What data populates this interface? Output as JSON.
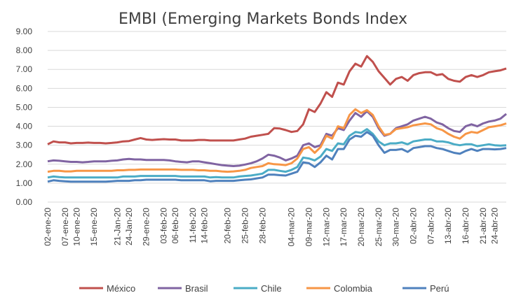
{
  "chart_data": {
    "type": "line",
    "title": "EMBI (Emerging Markets Bonds Index",
    "xlabel": "",
    "ylabel": "",
    "ylim": [
      0,
      9
    ],
    "yticks": [
      "0.00",
      "1.00",
      "2.00",
      "3.00",
      "4.00",
      "5.00",
      "6.00",
      "7.00",
      "8.00",
      "9.00"
    ],
    "x_tick_labels": [
      "02-ene-20",
      "07-ene-20",
      "10-ene-20",
      "15-ene-20",
      "21-Jan-20",
      "24-Jan-20",
      "29-ene-20",
      "03-feb-20",
      "06-feb-20",
      "11-feb-20",
      "14-feb-20",
      "20-feb-20",
      "25-feb-20",
      "28-feb-20",
      "04-mar-20",
      "09-mar-20",
      "12-mar-20",
      "17-mar-20",
      "20-mar-20",
      "25-mar-20",
      "30-mar-20",
      "02-abr-20",
      "07-abr-20",
      "13-abr-20",
      "16-abr-20",
      "21-abr-20",
      "24-abr-20"
    ],
    "x_tick_index": [
      0,
      3,
      5,
      8,
      12,
      14,
      17,
      20,
      22,
      25,
      27,
      31,
      34,
      37,
      42,
      45,
      48,
      51,
      54,
      57,
      60,
      63,
      66,
      69,
      72,
      75,
      77
    ],
    "legend": "bottom",
    "grid": true,
    "series": [
      {
        "name": "México",
        "color": "#C0504D",
        "values": [
          3.05,
          3.2,
          3.15,
          3.15,
          3.1,
          3.12,
          3.12,
          3.14,
          3.12,
          3.12,
          3.1,
          3.12,
          3.15,
          3.2,
          3.22,
          3.3,
          3.38,
          3.3,
          3.28,
          3.3,
          3.32,
          3.3,
          3.3,
          3.25,
          3.25,
          3.25,
          3.28,
          3.28,
          3.25,
          3.25,
          3.25,
          3.25,
          3.25,
          3.3,
          3.35,
          3.45,
          3.5,
          3.55,
          3.6,
          3.9,
          3.88,
          3.8,
          3.7,
          3.75,
          4.1,
          4.9,
          4.75,
          5.2,
          5.8,
          5.55,
          6.3,
          6.2,
          6.9,
          7.3,
          7.15,
          7.7,
          7.4,
          6.9,
          6.55,
          6.2,
          6.5,
          6.6,
          6.4,
          6.7,
          6.8,
          6.85,
          6.85,
          6.7,
          6.75,
          6.5,
          6.4,
          6.35,
          6.6,
          6.7,
          6.6,
          6.7,
          6.85,
          6.9,
          6.95,
          7.05
        ]
      },
      {
        "name": "Brasil",
        "color": "#8064A2",
        "values": [
          2.15,
          2.2,
          2.18,
          2.15,
          2.12,
          2.12,
          2.1,
          2.12,
          2.15,
          2.15,
          2.15,
          2.18,
          2.2,
          2.25,
          2.28,
          2.25,
          2.25,
          2.22,
          2.22,
          2.22,
          2.22,
          2.2,
          2.15,
          2.12,
          2.1,
          2.15,
          2.15,
          2.1,
          2.05,
          2.0,
          1.95,
          1.92,
          1.9,
          1.92,
          1.98,
          2.05,
          2.15,
          2.3,
          2.5,
          2.45,
          2.35,
          2.2,
          2.3,
          2.45,
          3.0,
          3.1,
          2.9,
          3.0,
          3.6,
          3.5,
          3.9,
          3.8,
          4.3,
          4.7,
          4.5,
          4.8,
          4.5,
          3.9,
          3.5,
          3.6,
          3.9,
          4.0,
          4.1,
          4.3,
          4.4,
          4.5,
          4.4,
          4.2,
          4.1,
          3.9,
          3.75,
          3.7,
          4.0,
          4.1,
          4.0,
          4.15,
          4.25,
          4.3,
          4.4,
          4.65
        ]
      },
      {
        "name": "Chile",
        "color": "#4BACC6",
        "values": [
          1.3,
          1.35,
          1.32,
          1.3,
          1.3,
          1.3,
          1.3,
          1.3,
          1.3,
          1.3,
          1.3,
          1.3,
          1.3,
          1.35,
          1.35,
          1.35,
          1.38,
          1.38,
          1.38,
          1.38,
          1.38,
          1.38,
          1.38,
          1.35,
          1.35,
          1.35,
          1.35,
          1.35,
          1.3,
          1.32,
          1.3,
          1.3,
          1.3,
          1.35,
          1.38,
          1.4,
          1.45,
          1.5,
          1.7,
          1.7,
          1.65,
          1.6,
          1.7,
          1.85,
          2.35,
          2.3,
          2.2,
          2.4,
          2.8,
          2.7,
          3.1,
          3.05,
          3.5,
          3.7,
          3.65,
          3.85,
          3.6,
          3.2,
          3.0,
          3.1,
          3.1,
          3.15,
          3.05,
          3.2,
          3.25,
          3.3,
          3.3,
          3.2,
          3.2,
          3.15,
          3.05,
          3.0,
          3.05,
          3.05,
          2.95,
          3.0,
          3.05,
          3.0,
          2.98,
          3.0
        ]
      },
      {
        "name": "Colombia",
        "color": "#F79646",
        "values": [
          1.6,
          1.65,
          1.65,
          1.62,
          1.62,
          1.65,
          1.65,
          1.65,
          1.65,
          1.65,
          1.65,
          1.65,
          1.68,
          1.68,
          1.7,
          1.7,
          1.72,
          1.72,
          1.72,
          1.72,
          1.72,
          1.72,
          1.72,
          1.7,
          1.7,
          1.7,
          1.68,
          1.68,
          1.65,
          1.65,
          1.62,
          1.6,
          1.62,
          1.65,
          1.7,
          1.8,
          1.85,
          1.9,
          2.05,
          2.0,
          1.98,
          1.95,
          2.05,
          2.3,
          2.8,
          2.9,
          2.6,
          2.9,
          3.5,
          3.35,
          4.0,
          3.9,
          4.6,
          4.9,
          4.7,
          4.85,
          4.6,
          4.0,
          3.55,
          3.6,
          3.85,
          3.9,
          3.95,
          4.05,
          4.1,
          4.15,
          4.1,
          3.9,
          3.8,
          3.6,
          3.45,
          3.35,
          3.6,
          3.7,
          3.65,
          3.8,
          3.95,
          4.0,
          4.05,
          4.15
        ]
      },
      {
        "name": "Perú",
        "color": "#4F81BD",
        "values": [
          1.08,
          1.15,
          1.12,
          1.1,
          1.08,
          1.08,
          1.08,
          1.08,
          1.08,
          1.08,
          1.08,
          1.1,
          1.12,
          1.12,
          1.12,
          1.15,
          1.15,
          1.18,
          1.18,
          1.18,
          1.18,
          1.18,
          1.18,
          1.15,
          1.15,
          1.15,
          1.15,
          1.15,
          1.1,
          1.12,
          1.12,
          1.12,
          1.12,
          1.15,
          1.18,
          1.2,
          1.25,
          1.3,
          1.45,
          1.45,
          1.42,
          1.4,
          1.5,
          1.6,
          2.1,
          2.05,
          1.85,
          2.1,
          2.45,
          2.25,
          2.8,
          2.8,
          3.3,
          3.5,
          3.45,
          3.7,
          3.5,
          3.0,
          2.6,
          2.75,
          2.75,
          2.8,
          2.65,
          2.85,
          2.9,
          2.95,
          2.95,
          2.85,
          2.8,
          2.7,
          2.6,
          2.55,
          2.7,
          2.8,
          2.7,
          2.8,
          2.8,
          2.78,
          2.8,
          2.85
        ]
      }
    ]
  }
}
